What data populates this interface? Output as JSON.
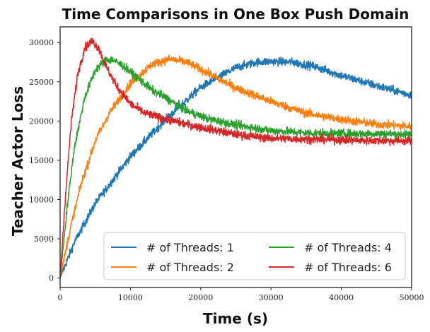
{
  "chart_data": {
    "type": "line",
    "title": "Time Comparisons in One Box Push Domain",
    "xlabel": "Time (s)",
    "ylabel": "Teacher Actor Loss",
    "xlim": [
      0,
      50000
    ],
    "ylim": [
      -1200,
      32000
    ],
    "xticks": [
      0,
      10000,
      20000,
      30000,
      40000,
      50000
    ],
    "yticks": [
      0,
      5000,
      10000,
      15000,
      20000,
      25000,
      30000
    ],
    "legend": {
      "location": "lower-right",
      "columns": 2
    },
    "noise": "lines are noisy; smoothed trend points listed",
    "series": [
      {
        "name": "# of Threads: 1",
        "color": "#1f77b4",
        "end_x": 50000,
        "x": [
          0,
          2000,
          5000,
          10000,
          15000,
          20000,
          25000,
          28000,
          30000,
          33000,
          36000,
          40000,
          45000,
          50000
        ],
        "y": [
          0,
          4500,
          9500,
          15500,
          20200,
          24300,
          26800,
          27500,
          27600,
          27500,
          27000,
          25800,
          24500,
          23300
        ]
      },
      {
        "name": "# of Threads: 2",
        "color": "#ff7f0e",
        "end_x": 50000,
        "x": [
          0,
          1500,
          3000,
          5000,
          7000,
          10000,
          13000,
          15500,
          18000,
          20000,
          25000,
          30000,
          35000,
          40000,
          45000,
          50000
        ],
        "y": [
          0,
          6500,
          12000,
          17500,
          21000,
          24800,
          27200,
          27900,
          27500,
          26600,
          24200,
          22500,
          21000,
          20200,
          19600,
          19300
        ]
      },
      {
        "name": "# of Threads: 4",
        "color": "#2ca02c",
        "end_x": 50000,
        "x": [
          0,
          1000,
          2000,
          3500,
          5000,
          6500,
          7500,
          9000,
          11000,
          13000,
          15000,
          18000,
          21000,
          25000,
          30000,
          35000,
          40000,
          45000,
          50000
        ],
        "y": [
          0,
          9000,
          16500,
          23000,
          26500,
          27800,
          27800,
          27000,
          25500,
          24000,
          23000,
          21300,
          20300,
          19500,
          18800,
          18500,
          18400,
          18400,
          18300
        ]
      },
      {
        "name": "# of Threads: 6",
        "color": "#d62728",
        "end_x": 50000,
        "x": [
          0,
          800,
          1600,
          2500,
          3500,
          4500,
          5500,
          6500,
          8000,
          10000,
          12000,
          14000,
          17000,
          20000,
          25000,
          30000,
          35000,
          40000,
          45000,
          50000
        ],
        "y": [
          0,
          11000,
          20000,
          26000,
          29300,
          30200,
          29300,
          27000,
          24500,
          22200,
          21000,
          20500,
          19800,
          19200,
          18300,
          17800,
          17700,
          17600,
          17500,
          17500
        ]
      }
    ]
  }
}
